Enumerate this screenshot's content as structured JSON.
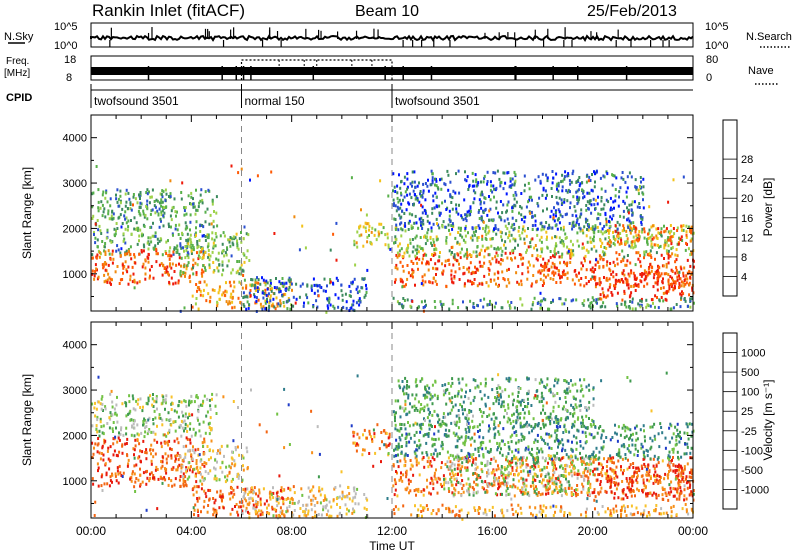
{
  "header": {
    "station": "Rankin Inlet (fitACF)",
    "beam": "Beam 10",
    "date": "25/Feb/2013"
  },
  "nsky_panel": {
    "left_label": "N.Sky",
    "right_label": "N.Search",
    "left_ticks": [
      "10^5",
      "10^0"
    ],
    "right_ticks": [
      "10^5",
      "10^0"
    ]
  },
  "freq_panel": {
    "left_label_1": "Freq.",
    "left_label_2": "[MHz]",
    "right_label": "Nave",
    "left_ticks": [
      "18",
      "8"
    ],
    "right_ticks": [
      "80",
      "0"
    ]
  },
  "cpid_panel": {
    "label": "CPID",
    "segments": [
      {
        "label": "twofsound 3501",
        "start_hour": 0,
        "end_hour": 6
      },
      {
        "label": "normal 150",
        "start_hour": 6,
        "end_hour": 12
      },
      {
        "label": "twofsound 3501",
        "start_hour": 12,
        "end_hour": 24
      }
    ]
  },
  "time_axis": {
    "label": "Time UT",
    "ticks": [
      "00:00",
      "04:00",
      "08:00",
      "12:00",
      "16:00",
      "20:00",
      "00:00"
    ]
  },
  "chart_data": [
    {
      "type": "heatmap",
      "name": "power_panel",
      "ylabel": "Slant Range [km]",
      "x_range_hours": [
        0,
        24
      ],
      "y_range_km": [
        180,
        4500
      ],
      "y_ticks": [
        "1000",
        "2000",
        "3000",
        "4000"
      ],
      "dashed_times_hours": [
        6,
        12
      ],
      "colorbar": {
        "label": "Power [dB]",
        "ticks": [
          "4",
          "8",
          "12",
          "16",
          "20",
          "24",
          "28"
        ],
        "colors": [
          "#0016ff",
          "#2a4fd0",
          "#3c8a5e",
          "#58b04a",
          "#9ed24a",
          "#f2c21a",
          "#f08a0e",
          "#ff5a05",
          "#ee1a0a"
        ]
      },
      "regions": [
        {
          "t0": 0.0,
          "t1": 5.0,
          "r0": 1450,
          "r1": 2900,
          "level": 0.35
        },
        {
          "t0": 0.0,
          "t1": 4.5,
          "r0": 800,
          "r1": 1550,
          "level": 0.85
        },
        {
          "t0": 3.5,
          "t1": 6.3,
          "r0": 1000,
          "r1": 1950,
          "level": 0.45
        },
        {
          "t0": 4.0,
          "t1": 8.0,
          "r0": 250,
          "r1": 850,
          "level": 0.7
        },
        {
          "t0": 6.0,
          "t1": 11.0,
          "r0": 200,
          "r1": 950,
          "level": 0.2
        },
        {
          "t0": 10.4,
          "t1": 11.9,
          "r0": 1600,
          "r1": 2150,
          "level": 0.55
        },
        {
          "t0": 12.0,
          "t1": 24.0,
          "r0": 750,
          "r1": 1500,
          "level": 0.85
        },
        {
          "t0": 12.0,
          "t1": 24.0,
          "r0": 1400,
          "r1": 2100,
          "level": 0.45
        },
        {
          "t0": 12.0,
          "t1": 22.0,
          "r0": 2000,
          "r1": 3300,
          "level": 0.2
        },
        {
          "t0": 20.0,
          "t1": 24.0,
          "r0": 450,
          "r1": 1100,
          "level": 0.92
        },
        {
          "t0": 20.5,
          "t1": 24.0,
          "r0": 1650,
          "r1": 2100,
          "level": 0.8
        },
        {
          "t0": 12.0,
          "t1": 24.0,
          "r0": 250,
          "r1": 500,
          "level": 0.3
        }
      ]
    },
    {
      "type": "heatmap",
      "name": "velocity_panel",
      "ylabel": "Slant Range [km]",
      "x_range_hours": [
        0,
        24
      ],
      "y_range_km": [
        180,
        4500
      ],
      "y_ticks": [
        "1000",
        "2000",
        "3000",
        "4000"
      ],
      "dashed_times_hours": [
        6,
        12
      ],
      "colorbar": {
        "label": "Velocity [m s⁻¹]",
        "ticks": [
          "1000",
          "500",
          "100",
          "25",
          "-25",
          "-100",
          "-500",
          "-1000"
        ],
        "colors": [
          "#1f3cc8",
          "#2e7c8a",
          "#3f9a4e",
          "#72c244",
          "#bcbcbc",
          "#f8c22a",
          "#f7901a",
          "#f36512",
          "#e8190c"
        ]
      },
      "regions": [
        {
          "t0": 0.0,
          "t1": 5.0,
          "r0": 2000,
          "r1": 2950,
          "level": 0.45
        },
        {
          "t0": 0.0,
          "t1": 4.5,
          "r0": 900,
          "r1": 2000,
          "level": 0.85
        },
        {
          "t0": 3.5,
          "t1": 6.2,
          "r0": 1000,
          "r1": 1800,
          "level": 0.55
        },
        {
          "t0": 4.0,
          "t1": 8.0,
          "r0": 250,
          "r1": 900,
          "level": 0.85
        },
        {
          "t0": 6.0,
          "t1": 11.0,
          "r0": 200,
          "r1": 900,
          "level": 0.6
        },
        {
          "t0": 10.4,
          "t1": 11.9,
          "r0": 1600,
          "r1": 2150,
          "level": 0.75
        },
        {
          "t0": 12.0,
          "t1": 24.0,
          "r0": 700,
          "r1": 1550,
          "level": 0.8
        },
        {
          "t0": 14.0,
          "t1": 20.0,
          "r0": 700,
          "r1": 1600,
          "level": 0.45
        },
        {
          "t0": 12.0,
          "t1": 24.0,
          "r0": 1500,
          "r1": 2300,
          "level": 0.25
        },
        {
          "t0": 12.0,
          "t1": 20.0,
          "r0": 2200,
          "r1": 3300,
          "level": 0.3
        },
        {
          "t0": 20.0,
          "t1": 24.0,
          "r0": 600,
          "r1": 1400,
          "level": 0.9
        },
        {
          "t0": 12.0,
          "t1": 24.0,
          "r0": 250,
          "r1": 500,
          "level": 0.7
        }
      ]
    }
  ]
}
